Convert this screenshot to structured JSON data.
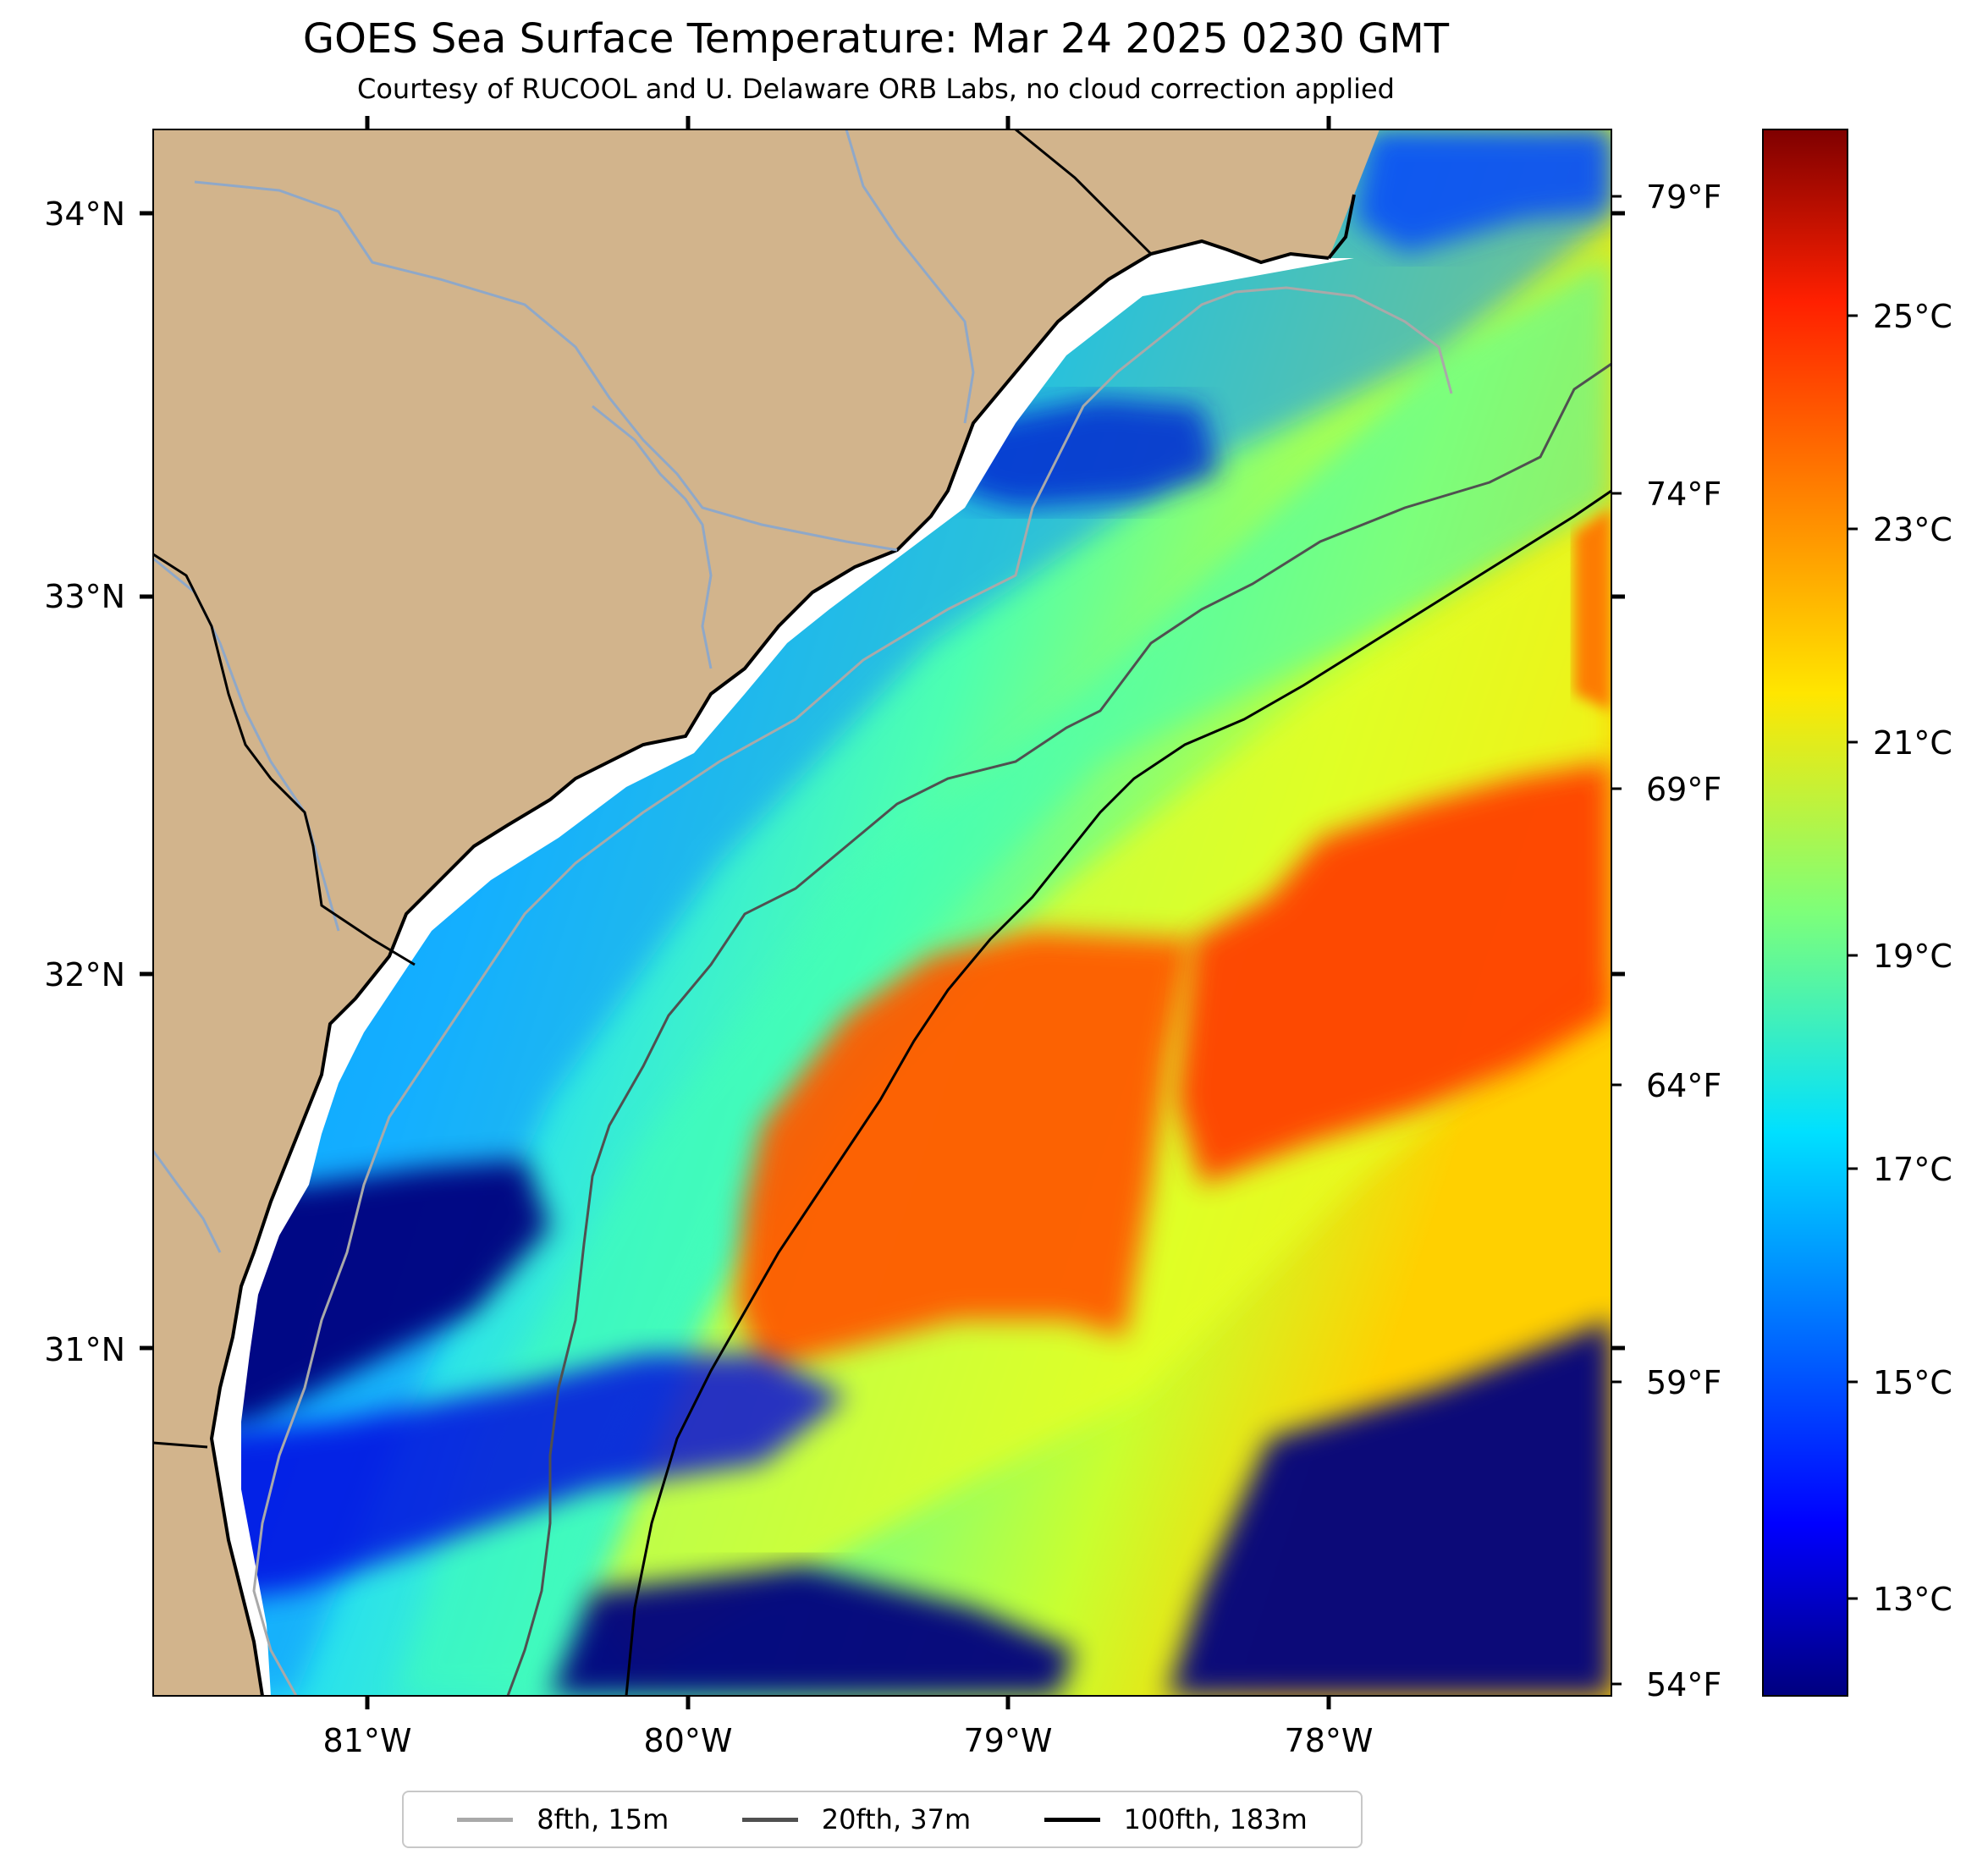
{
  "header": {
    "title": "GOES Sea Surface Temperature: Mar 24 2025 0230 GMT",
    "subtitle": "Courtesy of RUCOOL and U. Delaware ORB Labs, no cloud correction applied"
  },
  "map": {
    "lat_labels": [
      "34°N",
      "33°N",
      "32°N",
      "31°N"
    ],
    "lon_labels": [
      "81°W",
      "80°W",
      "79°W",
      "78°W"
    ],
    "fahrenheit_labels": [
      "79°F",
      "74°F",
      "69°F",
      "64°F",
      "59°F",
      "54°F"
    ],
    "colors": {
      "land": "#d2b48c",
      "cold": "#00007f",
      "warm": "#ff5500"
    }
  },
  "colorbar": {
    "celsius_labels": [
      "25°C",
      "23°C",
      "21°C",
      "19°C",
      "17°C",
      "15°C",
      "13°C"
    ],
    "colormap": "jet"
  },
  "legend": {
    "items": [
      {
        "label": "8fth, 15m",
        "color": "#a9a9a9"
      },
      {
        "label": "20fth, 37m",
        "color": "#505050"
      },
      {
        "label": "100fth, 183m",
        "color": "#000000"
      }
    ]
  }
}
